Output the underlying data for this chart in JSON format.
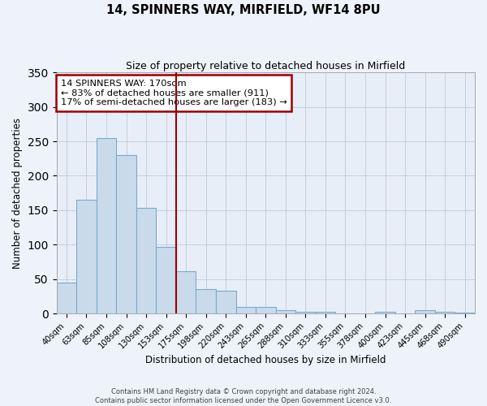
{
  "title": "14, SPINNERS WAY, MIRFIELD, WF14 8PU",
  "subtitle": "Size of property relative to detached houses in Mirfield",
  "xlabel": "Distribution of detached houses by size in Mirfield",
  "ylabel": "Number of detached properties",
  "bar_labels": [
    "40sqm",
    "63sqm",
    "85sqm",
    "108sqm",
    "130sqm",
    "153sqm",
    "175sqm",
    "198sqm",
    "220sqm",
    "243sqm",
    "265sqm",
    "288sqm",
    "310sqm",
    "333sqm",
    "355sqm",
    "378sqm",
    "400sqm",
    "423sqm",
    "445sqm",
    "468sqm",
    "490sqm"
  ],
  "bar_values": [
    45,
    165,
    255,
    230,
    153,
    97,
    61,
    35,
    33,
    10,
    10,
    5,
    2,
    2,
    0,
    0,
    3,
    0,
    5,
    2,
    1
  ],
  "bar_color": "#c9daea",
  "bar_edge_color": "#7aabcc",
  "vline_x": 5.5,
  "vline_color": "#990000",
  "ylim": [
    0,
    350
  ],
  "yticks": [
    0,
    50,
    100,
    150,
    200,
    250,
    300,
    350
  ],
  "annotation_line1": "14 SPINNERS WAY: 170sqm",
  "annotation_line2": "← 83% of detached houses are smaller (911)",
  "annotation_line3": "17% of semi-detached houses are larger (183) →",
  "annotation_box_color": "#990000",
  "footer_line1": "Contains HM Land Registry data © Crown copyright and database right 2024.",
  "footer_line2": "Contains public sector information licensed under the Open Government Licence v3.0.",
  "bg_color": "#eef2fa",
  "plot_bg_color": "#e8eef8",
  "grid_color": "#c0c8d8"
}
